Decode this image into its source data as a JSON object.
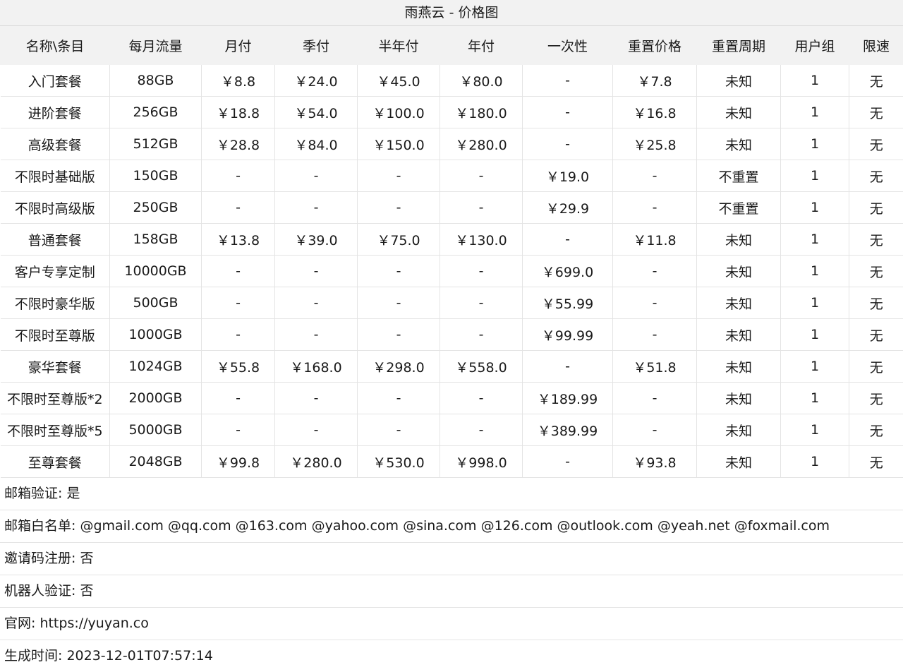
{
  "title": "雨燕云 - 价格图",
  "columns": [
    "名称\\条目",
    "每月流量",
    "月付",
    "季付",
    "半年付",
    "年付",
    "一次性",
    "重置价格",
    "重置周期",
    "用户组",
    "限速"
  ],
  "rows": [
    [
      "入门套餐",
      "88GB",
      "￥8.8",
      "￥24.0",
      "￥45.0",
      "￥80.0",
      "-",
      "￥7.8",
      "未知",
      "1",
      "无"
    ],
    [
      "进阶套餐",
      "256GB",
      "￥18.8",
      "￥54.0",
      "￥100.0",
      "￥180.0",
      "-",
      "￥16.8",
      "未知",
      "1",
      "无"
    ],
    [
      "高级套餐",
      "512GB",
      "￥28.8",
      "￥84.0",
      "￥150.0",
      "￥280.0",
      "-",
      "￥25.8",
      "未知",
      "1",
      "无"
    ],
    [
      "不限时基础版",
      "150GB",
      "-",
      "-",
      "-",
      "-",
      "￥19.0",
      "-",
      "不重置",
      "1",
      "无"
    ],
    [
      "不限时高级版",
      "250GB",
      "-",
      "-",
      "-",
      "-",
      "￥29.9",
      "-",
      "不重置",
      "1",
      "无"
    ],
    [
      "普通套餐",
      "158GB",
      "￥13.8",
      "￥39.0",
      "￥75.0",
      "￥130.0",
      "-",
      "￥11.8",
      "未知",
      "1",
      "无"
    ],
    [
      "客户专享定制",
      "10000GB",
      "-",
      "-",
      "-",
      "-",
      "￥699.0",
      "-",
      "未知",
      "1",
      "无"
    ],
    [
      "不限时豪华版",
      "500GB",
      "-",
      "-",
      "-",
      "-",
      "￥55.99",
      "-",
      "未知",
      "1",
      "无"
    ],
    [
      "不限时至尊版",
      "1000GB",
      "-",
      "-",
      "-",
      "-",
      "￥99.99",
      "-",
      "未知",
      "1",
      "无"
    ],
    [
      "豪华套餐",
      "1024GB",
      "￥55.8",
      "￥168.0",
      "￥298.0",
      "￥558.0",
      "-",
      "￥51.8",
      "未知",
      "1",
      "无"
    ],
    [
      "不限时至尊版*2",
      "2000GB",
      "-",
      "-",
      "-",
      "-",
      "￥189.99",
      "-",
      "未知",
      "1",
      "无"
    ],
    [
      "不限时至尊版*5",
      "5000GB",
      "-",
      "-",
      "-",
      "-",
      "￥389.99",
      "-",
      "未知",
      "1",
      "无"
    ],
    [
      "至尊套餐",
      "2048GB",
      "￥99.8",
      "￥280.0",
      "￥530.0",
      "￥998.0",
      "-",
      "￥93.8",
      "未知",
      "1",
      "无"
    ]
  ],
  "footer": [
    "邮箱验证: 是",
    "邮箱白名单: @gmail.com @qq.com @163.com @yahoo.com @sina.com @126.com @outlook.com @yeah.net @foxmail.com",
    "邀请码注册: 否",
    "机器人验证: 否",
    "官网: https://yuyan.co",
    "生成时间: 2023-12-01T07:57:14"
  ]
}
